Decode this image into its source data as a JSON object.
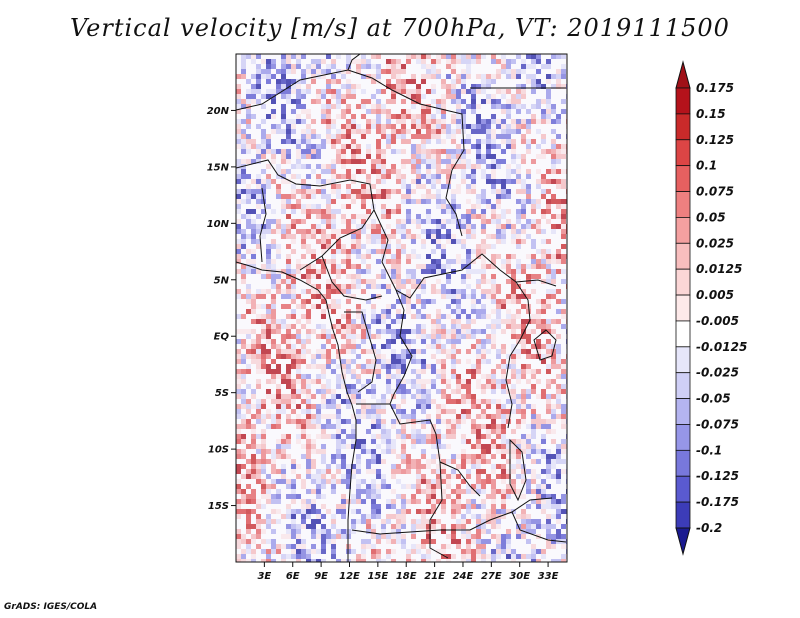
{
  "title": "Vertical velocity [m/s] at 700hPa, VT: 2019111500",
  "credit": "GrADS: IGES/COLA",
  "map": {
    "lon_range": [
      0,
      35
    ],
    "lat_range": [
      -20,
      25
    ],
    "lat_ticks": [
      {
        "value": 20,
        "label": "20N"
      },
      {
        "value": 15,
        "label": "15N"
      },
      {
        "value": 10,
        "label": "10N"
      },
      {
        "value": 5,
        "label": "5N"
      },
      {
        "value": 0,
        "label": "EQ"
      },
      {
        "value": -5,
        "label": "5S"
      },
      {
        "value": -10,
        "label": "10S"
      },
      {
        "value": -15,
        "label": "15S"
      }
    ],
    "lon_ticks": [
      {
        "value": 3,
        "label": "3E"
      },
      {
        "value": 6,
        "label": "6E"
      },
      {
        "value": 9,
        "label": "9E"
      },
      {
        "value": 12,
        "label": "12E"
      },
      {
        "value": 15,
        "label": "15E"
      },
      {
        "value": 18,
        "label": "18E"
      },
      {
        "value": 21,
        "label": "21E"
      },
      {
        "value": 24,
        "label": "24E"
      },
      {
        "value": 27,
        "label": "27E"
      },
      {
        "value": 30,
        "label": "30E"
      },
      {
        "value": 33,
        "label": "33E"
      }
    ]
  },
  "colorbar": {
    "levels": [
      {
        "label": "0.175",
        "color": "#b4121b"
      },
      {
        "label": "0.15",
        "color": "#c92a2a"
      },
      {
        "label": "0.125",
        "color": "#dc4545"
      },
      {
        "label": "0.1",
        "color": "#e66060"
      },
      {
        "label": "0.075",
        "color": "#ee8080"
      },
      {
        "label": "0.05",
        "color": "#f4a0a0"
      },
      {
        "label": "0.025",
        "color": "#f8bebe"
      },
      {
        "label": "0.0125",
        "color": "#fbd6d6"
      },
      {
        "label": "0.005",
        "color": "#fde9e9"
      },
      {
        "label": "-0.005",
        "color": "#ffffff"
      },
      {
        "label": "-0.0125",
        "color": "#e6e6fa"
      },
      {
        "label": "-0.025",
        "color": "#cfcff6"
      },
      {
        "label": "-0.05",
        "color": "#b4b4f0"
      },
      {
        "label": "-0.075",
        "color": "#9696e8"
      },
      {
        "label": "-0.1",
        "color": "#7878dc"
      },
      {
        "label": "-0.125",
        "color": "#5a5ad0"
      },
      {
        "label": "-0.175",
        "color": "#3c3cb8"
      },
      {
        "label": "-0.2",
        "color": "#2020a0"
      }
    ],
    "top_color": "#a01018",
    "bottom_color": "#1a1a90"
  }
}
